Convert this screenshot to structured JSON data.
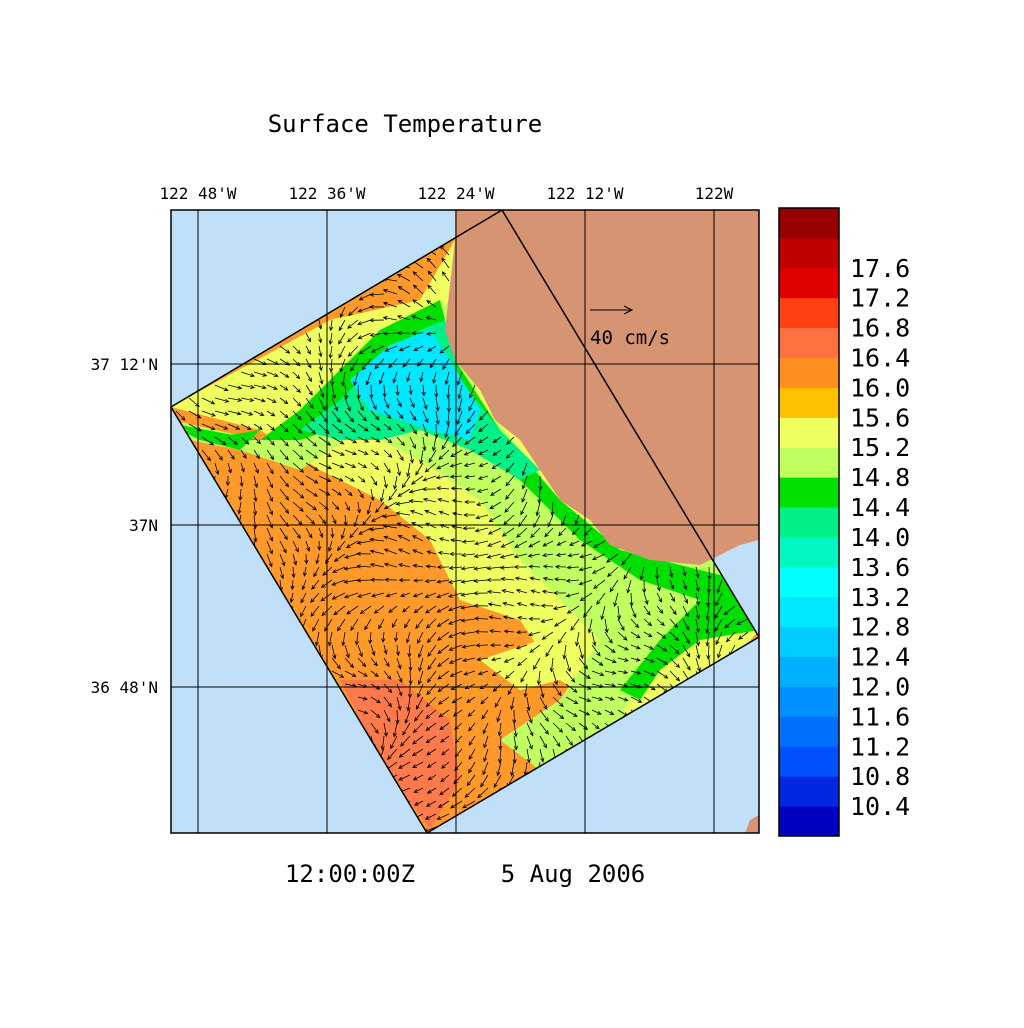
{
  "title": "Surface Temperature",
  "longitude_labels": [
    "122 48'W",
    "122 36'W",
    "122 24'W",
    "122 12'W",
    "122W"
  ],
  "latitude_labels": [
    "37 12'N",
    "37N",
    "36 48'N"
  ],
  "colorbar": {
    "labels": [
      "10.4",
      "10.8",
      "11.2",
      "11.6",
      "12.0",
      "12.4",
      "12.8",
      "13.2",
      "13.6",
      "14.0",
      "14.4",
      "14.8",
      "15.2",
      "15.6",
      "16.0",
      "16.4",
      "16.8",
      "17.2",
      "17.6"
    ],
    "colors": [
      "#0000c0",
      "#0028e0",
      "#0050ff",
      "#0070ff",
      "#0090ff",
      "#00b0ff",
      "#00ccff",
      "#00e8ff",
      "#00ffff",
      "#00f8c0",
      "#00f088",
      "#00e000",
      "#c0ff60",
      "#f0ff60",
      "#ffc000",
      "#ff9020",
      "#ff7040",
      "#ff4010",
      "#e00000",
      "#c00000",
      "#990000"
    ]
  },
  "vector_scale": "40 cm/s",
  "time": "12:00:00Z",
  "date": "5 Aug 2006"
}
